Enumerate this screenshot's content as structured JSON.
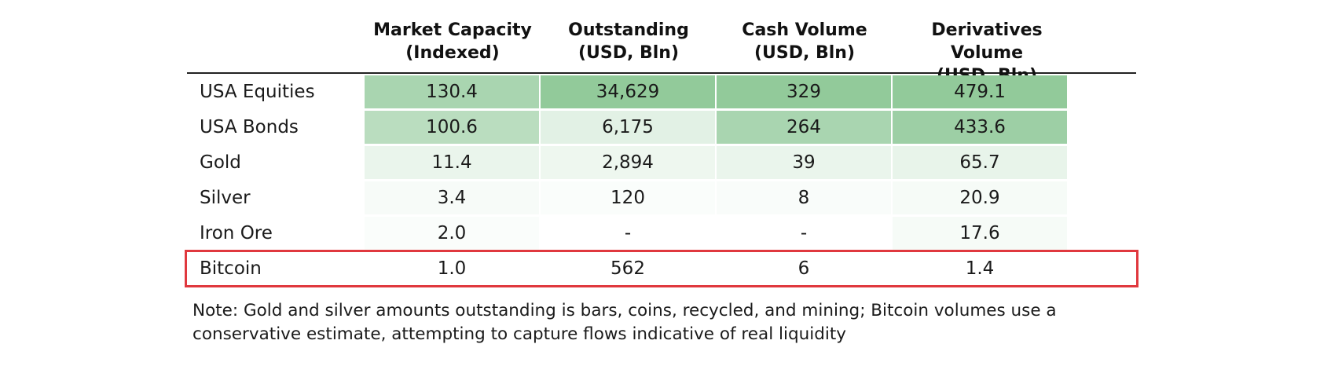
{
  "chart_data": {
    "type": "table",
    "columns": [
      {
        "line1": "Market Capacity",
        "line2": "(Indexed)"
      },
      {
        "line1": "Outstanding",
        "line2": "(USD, Bln)"
      },
      {
        "line1": "Cash Volume",
        "line2": "(USD, Bln)"
      },
      {
        "line1": "Derivatives Volume",
        "line2": "(USD, Bln)"
      }
    ],
    "rows": [
      {
        "label": "USA Equities",
        "values": [
          "130.4",
          "34,629",
          "329",
          "479.1"
        ],
        "shade": [
          0.75,
          0.95,
          0.95,
          0.95
        ]
      },
      {
        "label": "USA Bonds",
        "values": [
          "100.6",
          "6,175",
          "264",
          "433.6"
        ],
        "shade": [
          0.6,
          0.25,
          0.75,
          0.85
        ]
      },
      {
        "label": "Gold",
        "values": [
          "11.4",
          "2,894",
          "39",
          "65.7"
        ],
        "shade": [
          0.18,
          0.15,
          0.18,
          0.2
        ]
      },
      {
        "label": "Silver",
        "values": [
          "3.4",
          "120",
          "8",
          "20.9"
        ],
        "shade": [
          0.07,
          0.04,
          0.05,
          0.08
        ]
      },
      {
        "label": "Iron Ore",
        "values": [
          "2.0",
          "-",
          "-",
          "17.6"
        ],
        "shade": [
          0.04,
          0.0,
          0.0,
          0.08
        ]
      },
      {
        "label": "Bitcoin",
        "values": [
          "1.0",
          "562",
          "6",
          "1.4"
        ],
        "shade": [
          0.0,
          0.0,
          0.0,
          0.0
        ],
        "highlighted": true
      }
    ],
    "highlight_color": "#e0383e",
    "shade_color": "#8cc795",
    "note_line1": "Note: Gold and silver amounts outstanding is bars, coins, recycled, and mining; Bitcoin volumes use a",
    "note_line2": "conservative estimate, attempting to capture flows indicative of real liquidity"
  }
}
